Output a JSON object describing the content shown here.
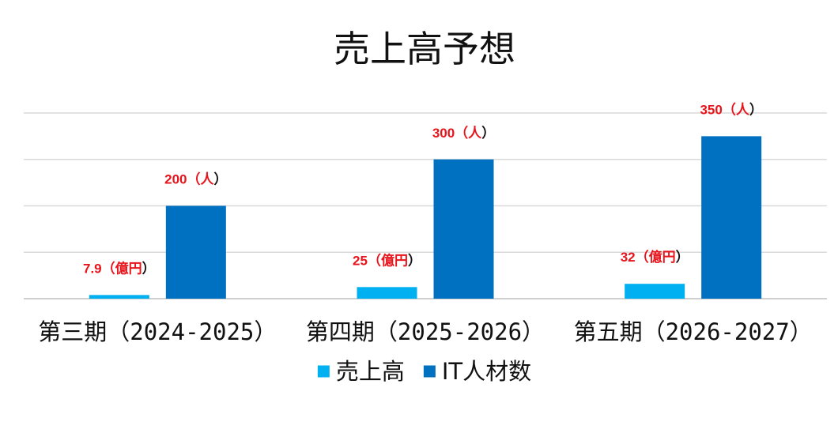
{
  "chart_data": {
    "type": "bar",
    "title": "売上高予想",
    "categories": [
      "第三期（2024-2025）",
      "第四期（2025-2026）",
      "第五期（2026-2027）"
    ],
    "series": [
      {
        "name": "売上高",
        "color": "#00b0f0",
        "values": [
          7.9,
          25,
          32
        ],
        "data_labels": [
          "7.9（億円）",
          "25（億円）",
          "32（億円）"
        ]
      },
      {
        "name": "IT人材数",
        "color": "#0070c0",
        "values": [
          200,
          300,
          350
        ],
        "data_labels": [
          "200（人）",
          "300（人）",
          "350（人）"
        ]
      }
    ],
    "ylim": [
      0,
      400
    ],
    "grid": true,
    "legend": "bottom",
    "xlabel": "",
    "ylabel": ""
  }
}
